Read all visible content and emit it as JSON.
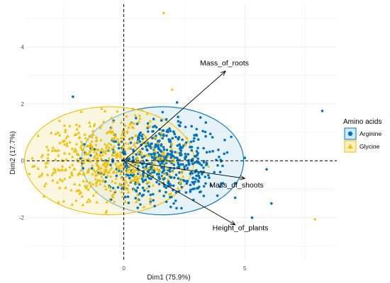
{
  "chart_data": {
    "type": "scatter",
    "title": "",
    "xlabel": "Dim1 (75.9%)",
    "ylabel": "Dim2 (17.7%)",
    "xlim": [
      -4.0,
      8.8
    ],
    "ylim": [
      -3.5,
      5.5
    ],
    "x_ticks": [
      0,
      5
    ],
    "y_ticks": [
      -2,
      0,
      2,
      4
    ],
    "grid": true,
    "reference_lines": {
      "x": 0,
      "y": 0,
      "style": "dashed"
    },
    "legend": {
      "title": "Amino acids",
      "position": "right",
      "entries": [
        {
          "label": "Arginine",
          "shape": "circle",
          "color": "#0073C2"
        },
        {
          "label": "Glycine",
          "shape": "triangle",
          "color": "#EFC000"
        }
      ]
    },
    "series": [
      {
        "name": "Arginine",
        "shape": "circle",
        "color": "#0073C2",
        "n_points": 560,
        "ellipse": {
          "center": [
            1.6,
            0.0
          ],
          "semi_axes": [
            3.35,
            1.9
          ],
          "fill": "#cfe8f3"
        },
        "outliers": [
          [
            -2.1,
            2.25
          ],
          [
            8.2,
            1.75
          ],
          [
            5.0,
            0.1
          ],
          [
            5.9,
            -0.3
          ],
          [
            6.1,
            -1.5
          ],
          [
            5.3,
            -2.0
          ],
          [
            4.6,
            -1.3
          ],
          [
            2.2,
            2.05
          ]
        ]
      },
      {
        "name": "Glycine",
        "shape": "triangle",
        "color": "#EFC000",
        "n_points": 540,
        "ellipse": {
          "center": [
            -0.6,
            0.0
          ],
          "semi_axes": [
            3.5,
            1.9
          ],
          "fill": "#f8efc4"
        },
        "outliers": [
          [
            1.65,
            5.2
          ],
          [
            2.0,
            2.5
          ],
          [
            7.9,
            -2.05
          ],
          [
            3.5,
            -0.2
          ]
        ]
      }
    ],
    "variables": [
      {
        "name": "Mass_of_roots",
        "x": 4.2,
        "y": 3.15
      },
      {
        "name": "Mass_of_shoots",
        "x": 5.0,
        "y": -0.62
      },
      {
        "name": "Height_of_plants",
        "x": 4.6,
        "y": -2.25
      }
    ]
  }
}
